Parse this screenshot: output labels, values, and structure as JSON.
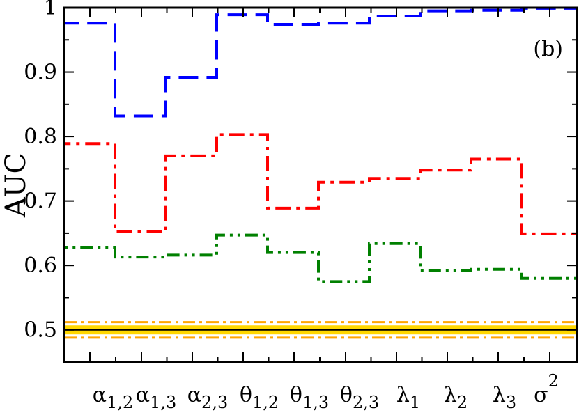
{
  "chart_data": {
    "type": "line",
    "step": true,
    "ylabel": "AUC",
    "panel_label": "(b)",
    "ylim": [
      0.45,
      1.0
    ],
    "yticks": [
      0.5,
      0.6,
      0.7,
      0.8,
      0.9,
      1.0
    ],
    "ytick_labels": [
      "0.5",
      "0.6",
      "0.7",
      "0.8",
      "0.9",
      "1"
    ],
    "categories": [
      {
        "base": "α",
        "sub": "1,2",
        "sup": ""
      },
      {
        "base": "α",
        "sub": "1,3",
        "sup": ""
      },
      {
        "base": "α",
        "sub": "2,3",
        "sup": ""
      },
      {
        "base": "θ",
        "sub": "1,2",
        "sup": ""
      },
      {
        "base": "θ",
        "sub": "1,3",
        "sup": ""
      },
      {
        "base": "θ",
        "sub": "2,3",
        "sup": ""
      },
      {
        "base": "λ",
        "sub": "1",
        "sup": ""
      },
      {
        "base": "λ",
        "sub": "2",
        "sup": ""
      },
      {
        "base": "λ",
        "sub": "3",
        "sup": ""
      },
      {
        "base": "σ",
        "sub": "",
        "sup": "2"
      }
    ],
    "series": [
      {
        "color": "#0000ff",
        "dash": "28,12",
        "values": [
          0.976,
          0.832,
          0.892,
          0.989,
          0.974,
          0.976,
          0.987,
          0.995,
          0.996,
          0.999
        ]
      },
      {
        "color": "#ff0000",
        "dash": "22,8,5,8",
        "values": [
          0.789,
          0.652,
          0.77,
          0.803,
          0.689,
          0.729,
          0.735,
          0.748,
          0.765,
          0.649
        ]
      },
      {
        "color": "#008000",
        "dash": "18,7,4,7,4,7",
        "values": [
          0.628,
          0.613,
          0.616,
          0.647,
          0.62,
          0.575,
          0.634,
          0.592,
          0.594,
          0.58
        ]
      }
    ],
    "baseline": {
      "value": 0.5,
      "band": [
        0.493,
        0.507
      ],
      "outer": [
        0.488,
        0.512
      ],
      "line_color": "#000000",
      "band_color": "#ffd700",
      "outer_color": "#ffa500"
    },
    "grid": false
  }
}
